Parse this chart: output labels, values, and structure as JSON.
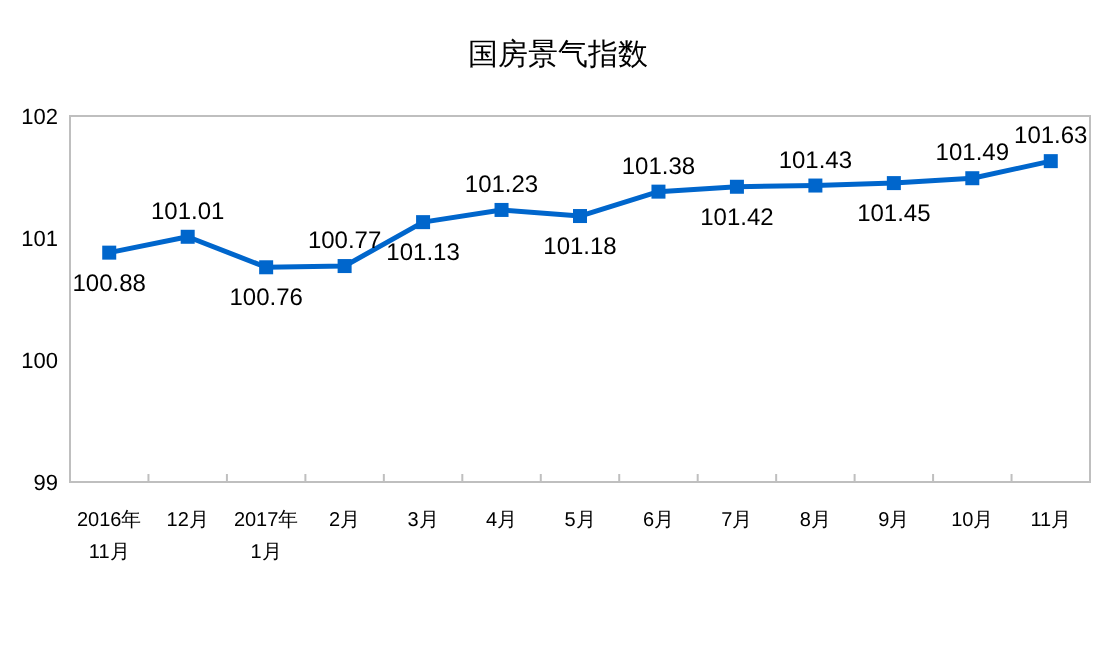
{
  "chart_data": {
    "type": "line",
    "title": "国房景气指数",
    "categories": [
      "2016年\n11月",
      "12月",
      "2017年\n1月",
      "2月",
      "3月",
      "4月",
      "5月",
      "6月",
      "7月",
      "8月",
      "9月",
      "10月",
      "11月"
    ],
    "series": [
      {
        "color": "#0066cc",
        "values": [
          100.88,
          101.01,
          100.76,
          100.77,
          101.13,
          101.23,
          101.18,
          101.38,
          101.42,
          101.43,
          101.45,
          101.49,
          101.63
        ]
      }
    ],
    "ylim": [
      99,
      102
    ],
    "yticks": [
      99,
      100,
      101,
      102
    ],
    "marker": "square",
    "line_style": "solid",
    "data_labels": true,
    "grid": false
  }
}
